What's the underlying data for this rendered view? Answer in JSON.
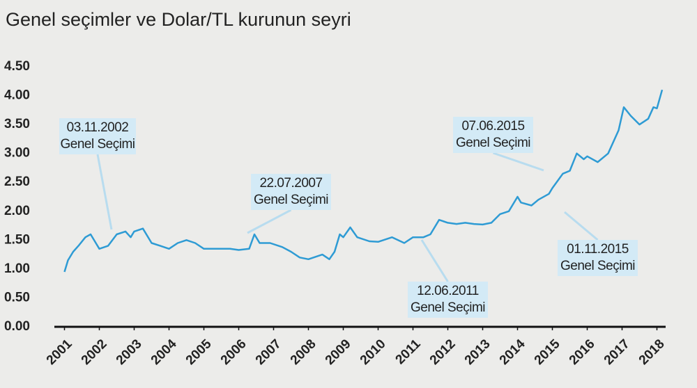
{
  "chart_data": {
    "type": "line",
    "title": "Genel seçimler ve Dolar/TL kurunun seyri",
    "x": [
      2001.0,
      2001.1,
      2001.25,
      2001.4,
      2001.6,
      2001.75,
      2001.9,
      2002.0,
      2002.25,
      2002.5,
      2002.75,
      2002.9,
      2003.0,
      2003.25,
      2003.5,
      2003.75,
      2004.0,
      2004.25,
      2004.5,
      2004.75,
      2005.0,
      2005.25,
      2005.5,
      2005.75,
      2006.0,
      2006.3,
      2006.45,
      2006.6,
      2006.9,
      2007.25,
      2007.5,
      2007.75,
      2008.0,
      2008.4,
      2008.6,
      2008.75,
      2008.9,
      2009.0,
      2009.2,
      2009.4,
      2009.75,
      2010.0,
      2010.4,
      2010.75,
      2011.0,
      2011.3,
      2011.5,
      2011.75,
      2012.0,
      2012.25,
      2012.5,
      2012.75,
      2013.0,
      2013.25,
      2013.5,
      2013.75,
      2014.0,
      2014.1,
      2014.4,
      2014.6,
      2014.9,
      2015.0,
      2015.3,
      2015.5,
      2015.7,
      2015.9,
      2016.0,
      2016.3,
      2016.6,
      2016.9,
      2017.05,
      2017.25,
      2017.5,
      2017.75,
      2017.9,
      2018.0,
      2018.15
    ],
    "series": [
      {
        "name": "Dolar/TL",
        "color": "#2e9bd4",
        "values": [
          0.95,
          1.15,
          1.3,
          1.4,
          1.55,
          1.6,
          1.45,
          1.35,
          1.4,
          1.6,
          1.65,
          1.55,
          1.65,
          1.7,
          1.45,
          1.4,
          1.35,
          1.45,
          1.5,
          1.45,
          1.35,
          1.35,
          1.35,
          1.35,
          1.33,
          1.35,
          1.6,
          1.45,
          1.45,
          1.38,
          1.3,
          1.2,
          1.17,
          1.25,
          1.17,
          1.3,
          1.6,
          1.55,
          1.72,
          1.55,
          1.48,
          1.47,
          1.55,
          1.45,
          1.55,
          1.55,
          1.6,
          1.85,
          1.8,
          1.78,
          1.8,
          1.78,
          1.77,
          1.8,
          1.95,
          2.0,
          2.25,
          2.15,
          2.1,
          2.2,
          2.3,
          2.4,
          2.65,
          2.7,
          3.0,
          2.9,
          2.95,
          2.85,
          3.0,
          3.4,
          3.8,
          3.65,
          3.5,
          3.6,
          3.8,
          3.78,
          4.1
        ]
      }
    ],
    "xlim": [
      2000.95,
      2018.25
    ],
    "xticks": [
      2001,
      2002,
      2003,
      2004,
      2005,
      2006,
      2007,
      2008,
      2009,
      2010,
      2011,
      2012,
      2013,
      2014,
      2015,
      2016,
      2017,
      2018
    ],
    "ylim": [
      0,
      4.5
    ],
    "yticks": [
      {
        "value": 0,
        "label": "0.00"
      },
      {
        "value": 0.5,
        "label": "0.50"
      },
      {
        "value": 1,
        "label": "1.00"
      },
      {
        "value": 1.5,
        "label": "1.50"
      },
      {
        "value": 2,
        "label": "2.00"
      },
      {
        "value": 2.5,
        "label": "2.50"
      },
      {
        "value": 3,
        "label": "3.00"
      },
      {
        "value": 3.5,
        "label": "3.50"
      },
      {
        "value": 4,
        "label": "4.00"
      },
      {
        "value": 4.5,
        "label": "4.50"
      }
    ],
    "annotations": [
      {
        "date": "03.11.2002",
        "label": "Genel Seçimi"
      },
      {
        "date": "22.07.2007",
        "label": "Genel Seçimi"
      },
      {
        "date": "12.06.2011",
        "label": "Genel Seçimi"
      },
      {
        "date": "07.06.2015",
        "label": "Genel Seçimi"
      },
      {
        "date": "01.11.2015",
        "label": "Genel Seçimi"
      }
    ]
  }
}
